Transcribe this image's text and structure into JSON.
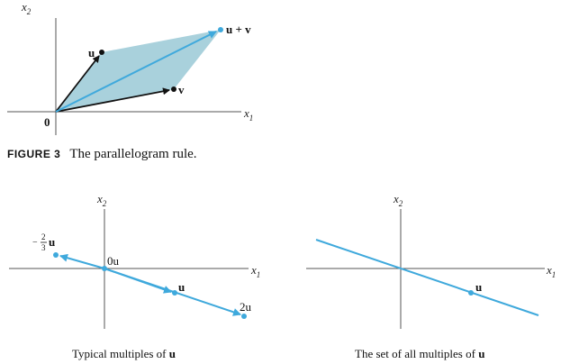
{
  "figure3": {
    "x_axis_label": "x",
    "x_axis_sub": "1",
    "y_axis_label": "x",
    "y_axis_sub": "2",
    "origin_label": "0",
    "label_u": "u",
    "label_v": "v",
    "label_u_plus_v": "u + v",
    "caption_tag": "FIGURE 3",
    "caption_text": "The parallelogram rule."
  },
  "multiples": {
    "x_axis_label": "x",
    "x_axis_sub": "1",
    "y_axis_label": "x",
    "y_axis_sub": "2",
    "label_neg_num": "2",
    "label_neg_den": "3",
    "label_neg_sign": "−",
    "label_neg_u": "u",
    "label_0u": "0u",
    "label_u": "u",
    "label_2u": "2u",
    "caption_prefix": "Typical multiples of",
    "caption_u": "u"
  },
  "all_multiples": {
    "x_axis_label": "x",
    "x_axis_sub": "1",
    "y_axis_label": "x",
    "y_axis_sub": "2",
    "label_u": "u",
    "caption_prefix": "The set of all multiples of",
    "caption_u": "u"
  },
  "colors": {
    "vector_blue": "#3fa9dc",
    "parallelogram_fill": "#a9d1dc",
    "axis": "#555555",
    "black": "#111111"
  }
}
